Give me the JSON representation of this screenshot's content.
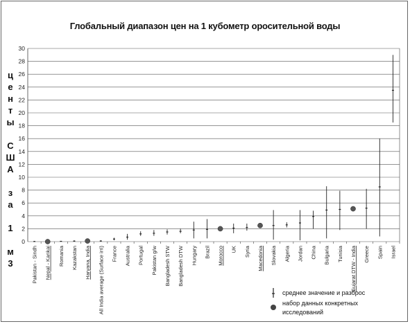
{
  "chart_data": {
    "type": "scatter",
    "title": "Глобальный диапазон цен на 1 кубометр оросительной воды",
    "ylabel": "ц е н т ы С Ш А з а 1 м 3",
    "ylim": [
      0,
      30
    ],
    "yticks": [
      0,
      2,
      4,
      6,
      8,
      10,
      12,
      14,
      16,
      18,
      20,
      22,
      24,
      26,
      28,
      30
    ],
    "grid": true,
    "categories": [
      "Pakistan - Sindh",
      "Nepal - Kankai",
      "Romania",
      "Kazakstan",
      "Haryana, India",
      "All India average (Surface irri)",
      "France",
      "Australia",
      "Portugal",
      "Pakistan g/w",
      "Bangladesh STW",
      "Bangladesh DTW",
      "Hungary",
      "Brazil",
      "Morocco",
      "UK",
      "Syria",
      "Macedonia",
      "Slovakia",
      "Algeria",
      "Jordan",
      "China",
      "Bulgaria",
      "Tunisia",
      "Gujarat DTW - India",
      "Greece",
      "Spain",
      "Israel"
    ],
    "series": [
      {
        "name": "среднее значение и разброс",
        "mean": [
          0.02,
          0.05,
          0.05,
          0.08,
          0.1,
          0.1,
          0.4,
          0.7,
          1.2,
          1.3,
          1.5,
          1.6,
          1.8,
          1.9,
          2.0,
          2.1,
          2.2,
          2.5,
          2.5,
          2.6,
          2.9,
          3.9,
          4.9,
          5.0,
          5.1,
          5.2,
          8.5,
          23.5
        ],
        "low": [
          0.0,
          0.0,
          0.0,
          0.0,
          0.0,
          0.0,
          0.2,
          0.3,
          0.9,
          0.9,
          1.1,
          1.3,
          0.5,
          0.5,
          1.8,
          1.3,
          1.7,
          2.3,
          0.3,
          2.2,
          0.2,
          2.0,
          0.5,
          1.8,
          5.0,
          2.0,
          0.8,
          18.5
        ],
        "high": [
          0.1,
          0.2,
          0.1,
          0.2,
          0.3,
          0.2,
          0.6,
          1.2,
          1.6,
          1.8,
          1.9,
          2.0,
          3.1,
          3.5,
          2.3,
          2.8,
          2.8,
          2.8,
          4.9,
          3.0,
          4.9,
          4.8,
          8.6,
          7.9,
          5.3,
          8.2,
          16.0,
          29.0
        ]
      },
      {
        "name": "набор данных конкретных исследований",
        "points": [
          {
            "category": "Nepal - Kankai",
            "y": 0.0
          },
          {
            "category": "Haryana, India",
            "y": 0.1
          },
          {
            "category": "Morocco",
            "y": 2.0
          },
          {
            "category": "Macedonia",
            "y": 2.5
          },
          {
            "category": "Gujarat DTW - India",
            "y": 5.1
          }
        ]
      }
    ],
    "underlined_categories": [
      "Nepal - Kankai",
      "Haryana, India",
      "Morocco",
      "Macedonia",
      "Gujarat DTW - India"
    ],
    "legend_placement": "bottom-right"
  }
}
